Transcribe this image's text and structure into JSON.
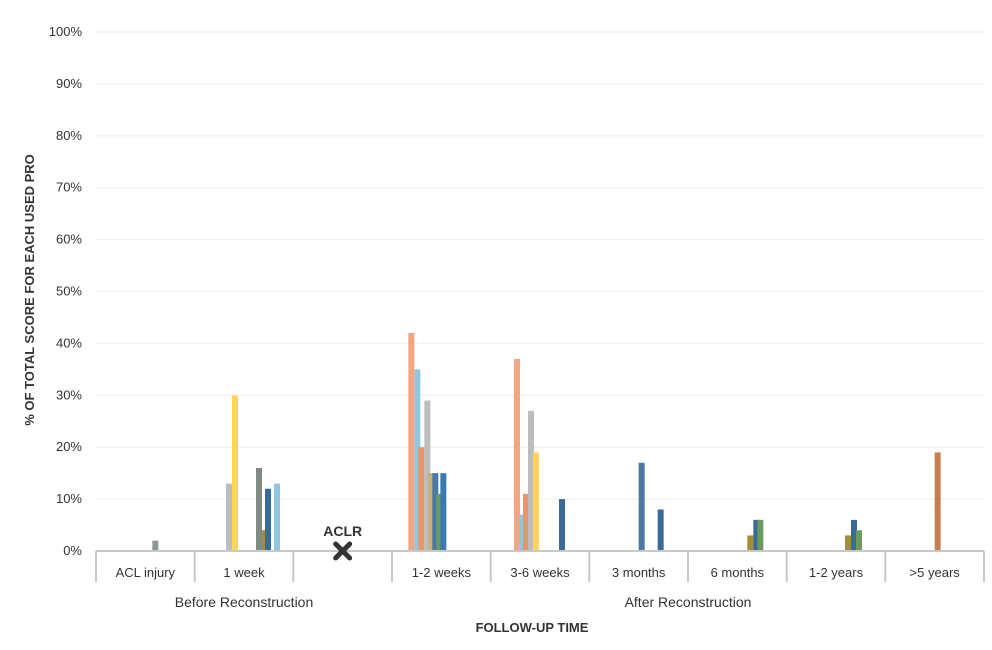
{
  "chart_data": {
    "type": "bar",
    "xlabel": "FOLLOW-UP TIME",
    "ylabel": "% OF TOTAL SCORE FOR EACH USED PRO",
    "ylim": [
      0,
      100
    ],
    "yticks": [
      "0%",
      "10%",
      "20%",
      "30%",
      "40%",
      "50%",
      "60%",
      "70%",
      "80%",
      "90%",
      "100%"
    ],
    "grid": true,
    "categories": [
      "ACL injury",
      "1 week",
      "",
      "1-2 weeks",
      "3-6 weeks",
      "3 months",
      "6 months",
      "1-2 years",
      ">5 years"
    ],
    "groups": [
      {
        "label": "Before Reconstruction",
        "from": 0,
        "to": 2
      },
      {
        "label": "After Reconstruction",
        "from": 3,
        "to": 8
      }
    ],
    "annotation": {
      "label": "ACLR",
      "category_index": 2,
      "marker": "x-mark-icon"
    },
    "series_colors": [
      "#f4a582",
      "#92c5de",
      "#bdbdbd",
      "#fdd462",
      "#e8956a",
      "#8a9a8e",
      "#4a79a6",
      "#6baed6",
      "#6b9a5f",
      "#a68b3c",
      "#c87f4e",
      "#3a6a98"
    ],
    "bars": [
      {
        "category": 0,
        "offset": 10,
        "value": 2,
        "color": "#8a9a8e"
      },
      {
        "category": 1,
        "offset": -15,
        "value": 13,
        "color": "#bdbdbd"
      },
      {
        "category": 1,
        "offset": -9,
        "value": 30,
        "color": "#fdd462"
      },
      {
        "category": 1,
        "offset": 15,
        "value": 16,
        "color": "#7f8c84"
      },
      {
        "category": 1,
        "offset": 21,
        "value": 4,
        "color": "#a68b3c"
      },
      {
        "category": 1,
        "offset": 24,
        "value": 12,
        "color": "#3a6a98"
      },
      {
        "category": 1,
        "offset": 33,
        "value": 13,
        "color": "#92c5de"
      },
      {
        "category": 3,
        "offset": -30,
        "value": 42,
        "color": "#f4a582"
      },
      {
        "category": 3,
        "offset": -24,
        "value": 35,
        "color": "#92c5de"
      },
      {
        "category": 3,
        "offset": -20,
        "value": 20,
        "color": "#e8956a"
      },
      {
        "category": 3,
        "offset": -14,
        "value": 29,
        "color": "#bdbdbd"
      },
      {
        "category": 3,
        "offset": -10,
        "value": 15,
        "color": "#c8b07a"
      },
      {
        "category": 3,
        "offset": -6,
        "value": 15,
        "color": "#4a79a6"
      },
      {
        "category": 3,
        "offset": -2,
        "value": 11,
        "color": "#6b9a5f"
      },
      {
        "category": 3,
        "offset": 2,
        "value": 15,
        "color": "#3a7ab0"
      },
      {
        "category": 4,
        "offset": -23,
        "value": 37,
        "color": "#f4a582"
      },
      {
        "category": 4,
        "offset": -18,
        "value": 7,
        "color": "#92c5de"
      },
      {
        "category": 4,
        "offset": -14,
        "value": 11,
        "color": "#e8956a"
      },
      {
        "category": 4,
        "offset": -9,
        "value": 27,
        "color": "#bdbdbd"
      },
      {
        "category": 4,
        "offset": -4,
        "value": 19,
        "color": "#fdd462"
      },
      {
        "category": 4,
        "offset": 22,
        "value": 10,
        "color": "#3a6a98"
      },
      {
        "category": 5,
        "offset": 3,
        "value": 17,
        "color": "#4a79a6"
      },
      {
        "category": 5,
        "offset": 22,
        "value": 8,
        "color": "#3a6a98"
      },
      {
        "category": 6,
        "offset": 13,
        "value": 3,
        "color": "#a68b3c"
      },
      {
        "category": 6,
        "offset": 19,
        "value": 6,
        "color": "#3a6a98"
      },
      {
        "category": 6,
        "offset": 23,
        "value": 6,
        "color": "#6b9a5f"
      },
      {
        "category": 7,
        "offset": 12,
        "value": 3,
        "color": "#a68b3c"
      },
      {
        "category": 7,
        "offset": 18,
        "value": 6,
        "color": "#3a6a98"
      },
      {
        "category": 7,
        "offset": 23,
        "value": 4,
        "color": "#6b9a5f"
      },
      {
        "category": 8,
        "offset": 3,
        "value": 19,
        "color": "#c87f4e"
      }
    ]
  }
}
